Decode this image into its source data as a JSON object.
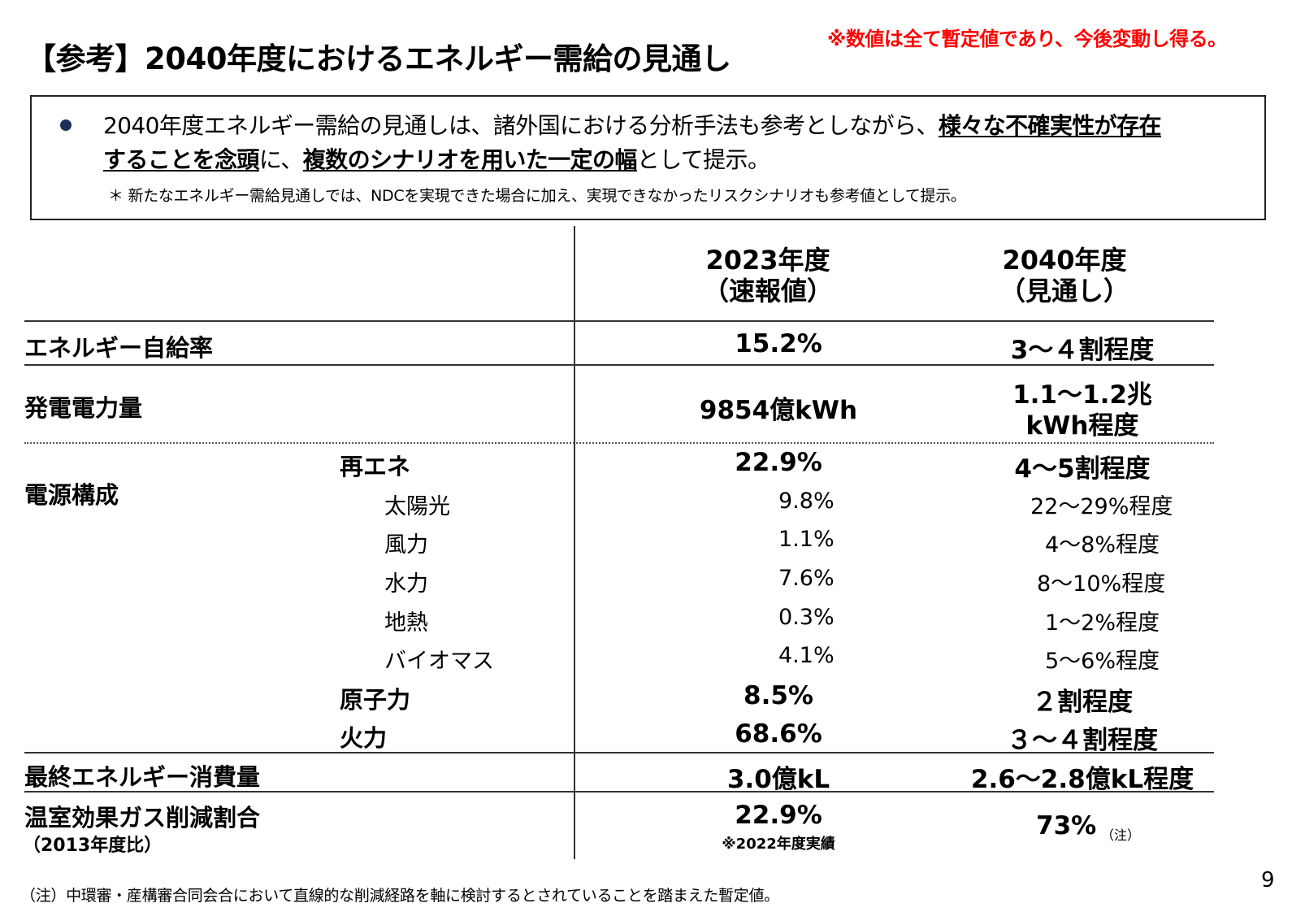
{
  "header": {
    "title": "【参考】2040年度におけるエネルギー需給の見通し",
    "provisional_note": "※数値は全て暫定値であり、今後変動し得る。"
  },
  "summary": {
    "text_1": "2040年度エネルギー需給の見通しは、諸外国における分析手法も参考としながら、",
    "emph_1": "様々な不確実性が存在",
    "emph_2": "することを念頭",
    "text_2": "に、",
    "emph_3": "複数のシナリオを用いた一定の幅",
    "text_3": "として提示。",
    "star_note": "＊ 新たなエネルギー需給見通しでは、NDCを実現できた場合に加え、実現できなかったリスクシナリオも参考値として提示。"
  },
  "table": {
    "col_2023": {
      "line1": "2023年度",
      "line2": "（速報値）"
    },
    "col_2040": {
      "line1": "2040年度",
      "line2": "（見通し）"
    },
    "self_sufficiency": {
      "label": "エネルギー自給率",
      "v2023": "15.2%",
      "v2040": "3～４割程度"
    },
    "generation": {
      "label": "発電電力量",
      "v2023": "9854億kWh",
      "v2040_line1": "1.1～1.2兆",
      "v2040_line2": "kWh程度"
    },
    "power_mix": {
      "label": "電源構成",
      "renewable": {
        "label": "再エネ",
        "v2023": "22.9%",
        "v2040": "4～5割程度"
      },
      "renewable_items": [
        {
          "label": "太陽光",
          "v2023": "9.8%",
          "v2040": "22～29%程度"
        },
        {
          "label": "風力",
          "v2023": "1.1%",
          "v2040": "4～8%程度"
        },
        {
          "label": "水力",
          "v2023": "7.6%",
          "v2040": "8～10%程度"
        },
        {
          "label": "地熱",
          "v2023": "0.3%",
          "v2040": "1～2%程度"
        },
        {
          "label": "バイオマス",
          "v2023": "4.1%",
          "v2040": "5～6%程度"
        }
      ],
      "nuclear": {
        "label": "原子力",
        "v2023": "8.5%",
        "v2040": "２割程度"
      },
      "thermal": {
        "label": "火力",
        "v2023": "68.6%",
        "v2040": "３～４割程度"
      }
    },
    "final_consumption": {
      "label": "最終エネルギー消費量",
      "v2023": "3.0億kL",
      "v2040": "2.6～2.8億kL程度"
    },
    "ghg": {
      "label": "温室効果ガス削減割合",
      "sublabel": "（2013年度比）",
      "v2023": "22.9%",
      "v2023_note": "※2022年度実績",
      "v2040": "73%",
      "v2040_note": "（注）"
    }
  },
  "footnote": "（注）中環審・産構審合同会合において直線的な削減経路を軸に検討するとされていることを踏まえた暫定値。",
  "page_number": "9"
}
